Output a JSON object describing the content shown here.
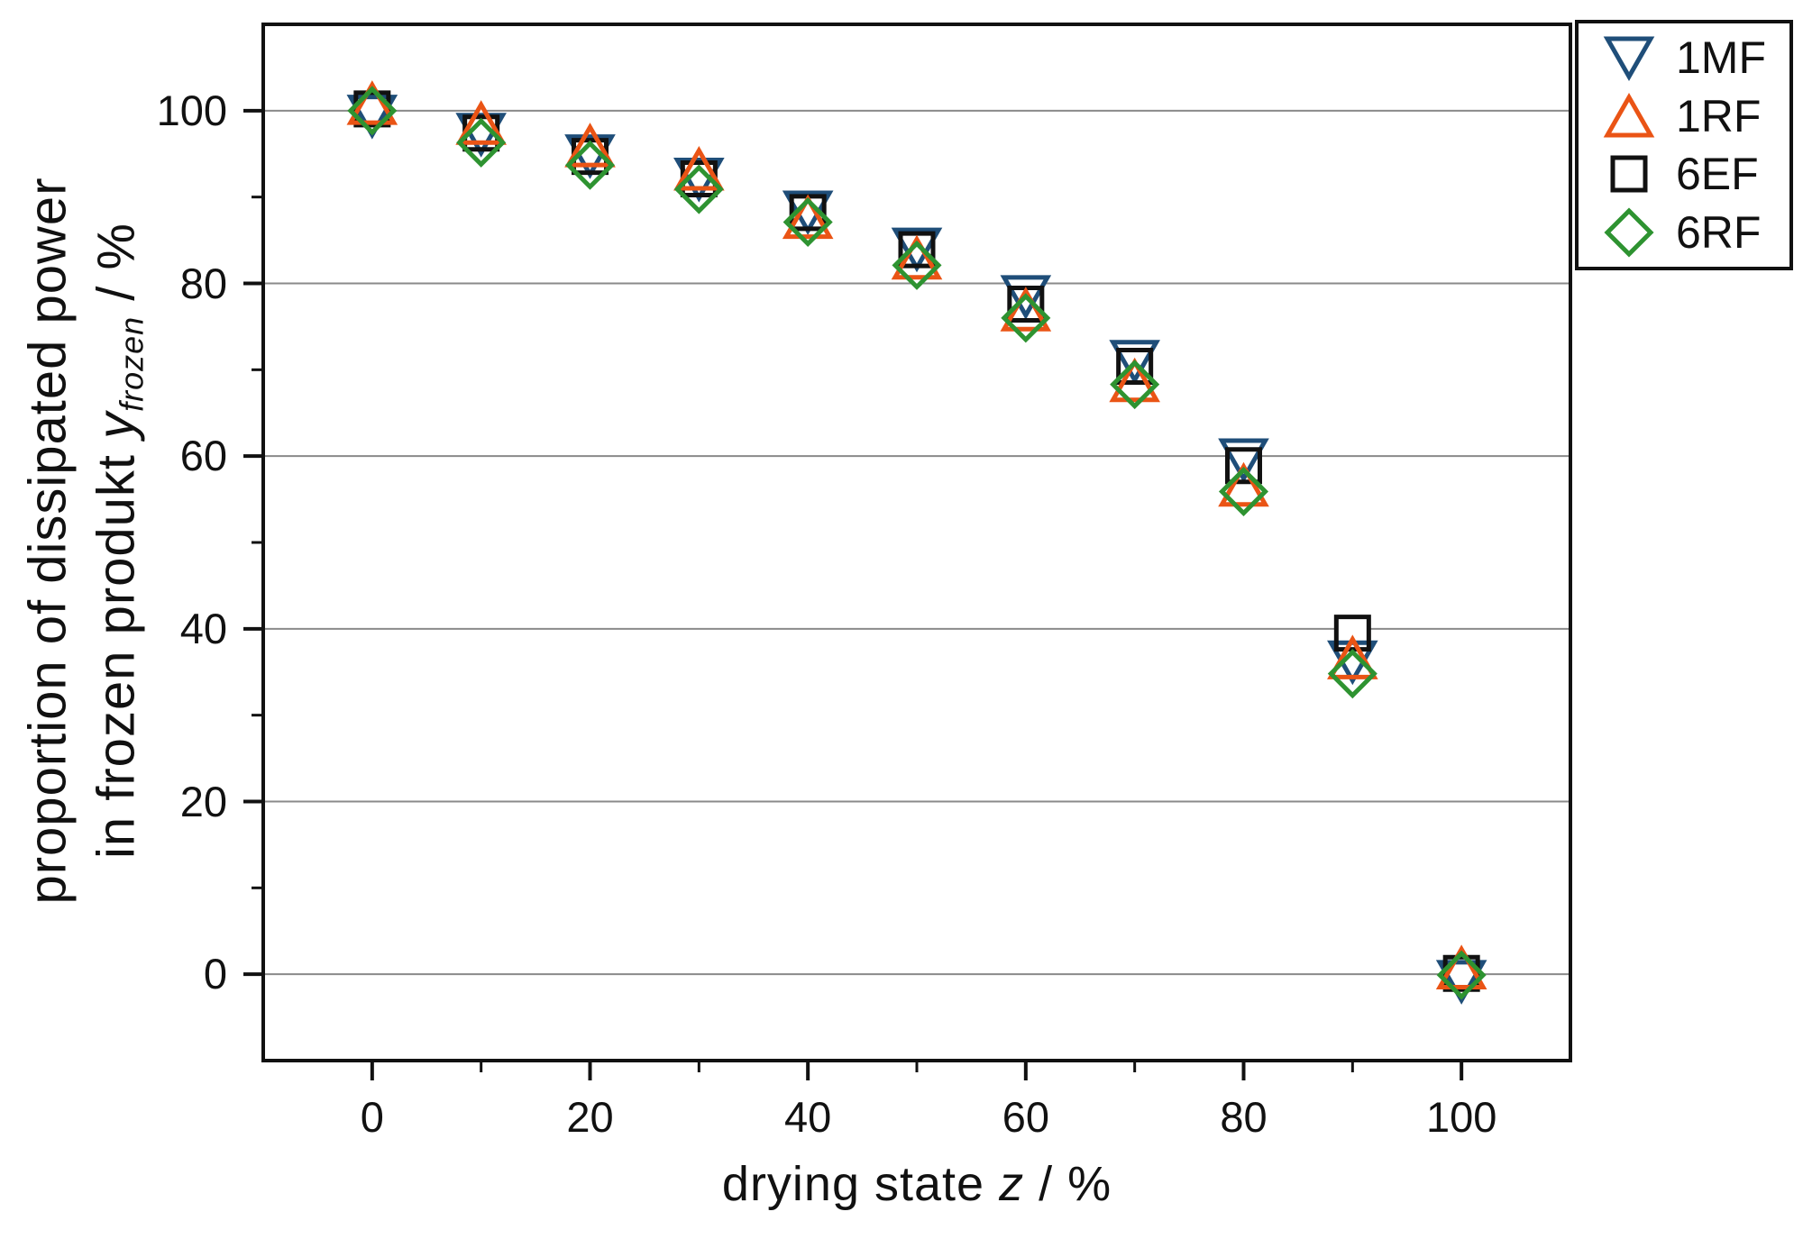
{
  "figure": {
    "background": "#ffffff"
  },
  "chart_data": {
    "type": "scatter",
    "title": "",
    "xlabel": "drying state z / %",
    "xlabel_parts": {
      "pre": "drying state ",
      "var": "z",
      "post": " / %"
    },
    "ylabel": "proportion of dissipated power in frozen produkt y_frozen / %",
    "ylabel_line1": "proportion of dissipated power",
    "ylabel_line2_parts": {
      "pre": "in frozen produkt ",
      "var": "y",
      "sub": "frozen",
      "post": " / %"
    },
    "xlim": [
      -10,
      110
    ],
    "ylim": [
      -10,
      110
    ],
    "x_major_ticks": [
      0,
      20,
      40,
      60,
      80,
      100
    ],
    "x_minor_ticks": [
      10,
      30,
      50,
      70,
      90
    ],
    "y_major_ticks": [
      0,
      20,
      40,
      60,
      80,
      100
    ],
    "y_minor_ticks": [
      10,
      30,
      50,
      70,
      90
    ],
    "grid": "horizontal-major-only",
    "grid_color": "#8a8a8a",
    "frame_color": "#111111",
    "legend_position": "top-right",
    "x": [
      0,
      10,
      20,
      30,
      40,
      50,
      60,
      70,
      80,
      90,
      100
    ],
    "series": [
      {
        "name": "1MF",
        "marker": "triangle-down",
        "color": "#1F4E79",
        "values": [
          99.4,
          97.3,
          94.8,
          92.1,
          88.3,
          84.0,
          78.5,
          71.0,
          59.6,
          36.2,
          -0.8
        ]
      },
      {
        "name": "1RF",
        "marker": "triangle-up",
        "color": "#EA5415",
        "values": [
          100.8,
          98.5,
          95.9,
          93.2,
          87.6,
          82.9,
          76.9,
          68.7,
          56.6,
          36.6,
          0.7
        ]
      },
      {
        "name": "6EF",
        "marker": "square",
        "color": "#111111",
        "values": [
          100.2,
          97.4,
          94.7,
          92.1,
          88.2,
          83.9,
          77.6,
          70.4,
          58.9,
          39.5,
          0.1
        ]
      },
      {
        "name": "6RF",
        "marker": "diamond",
        "color": "#2E9331",
        "values": [
          100.0,
          96.3,
          93.7,
          90.9,
          87.1,
          82.1,
          76.0,
          68.3,
          55.9,
          34.8,
          -0.1
        ]
      }
    ],
    "draw_order": [
      "1MF",
      "6EF",
      "1RF",
      "6RF"
    ]
  },
  "legend": {
    "items": [
      "1MF",
      "1RF",
      "6EF",
      "6RF"
    ]
  }
}
